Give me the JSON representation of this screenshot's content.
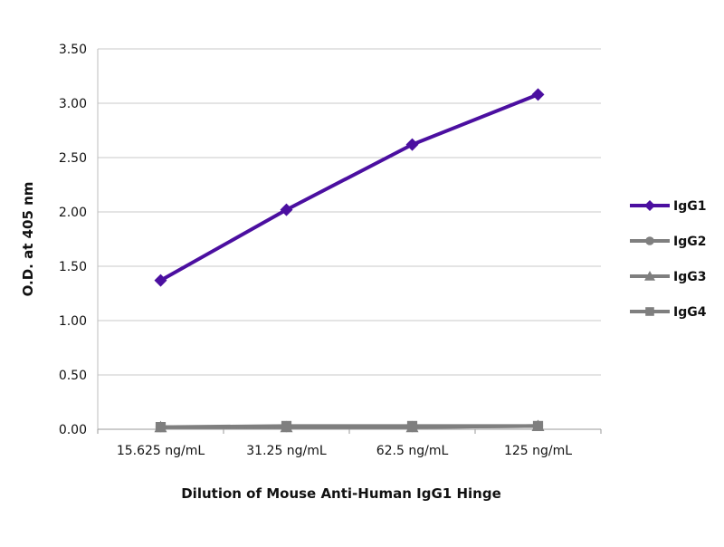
{
  "chart_data": {
    "type": "line",
    "title": "",
    "xlabel": "Dilution of Mouse Anti-Human IgG1 Hinge",
    "ylabel": "O.D. at 405 nm",
    "categories": [
      "15.625 ng/mL",
      "31.25 ng/mL",
      "62.5 ng/mL",
      "125 ng/mL"
    ],
    "ylim": [
      0,
      3.5
    ],
    "yticks": [
      "0.00",
      "0.50",
      "1.00",
      "1.50",
      "2.00",
      "2.50",
      "3.00",
      "3.50"
    ],
    "grid": true,
    "legend_position": "right",
    "series": [
      {
        "name": "IgG1",
        "marker": "diamond",
        "color": "#4b0fa0",
        "values": [
          1.37,
          2.02,
          2.62,
          3.08
        ]
      },
      {
        "name": "IgG2",
        "marker": "circle",
        "color": "#7f7f7f",
        "values": [
          0.02,
          0.02,
          0.02,
          0.03
        ]
      },
      {
        "name": "IgG3",
        "marker": "triangle",
        "color": "#7f7f7f",
        "values": [
          0.02,
          0.02,
          0.02,
          0.03
        ]
      },
      {
        "name": "IgG4",
        "marker": "square",
        "color": "#7f7f7f",
        "values": [
          0.02,
          0.03,
          0.03,
          0.03
        ]
      }
    ]
  }
}
